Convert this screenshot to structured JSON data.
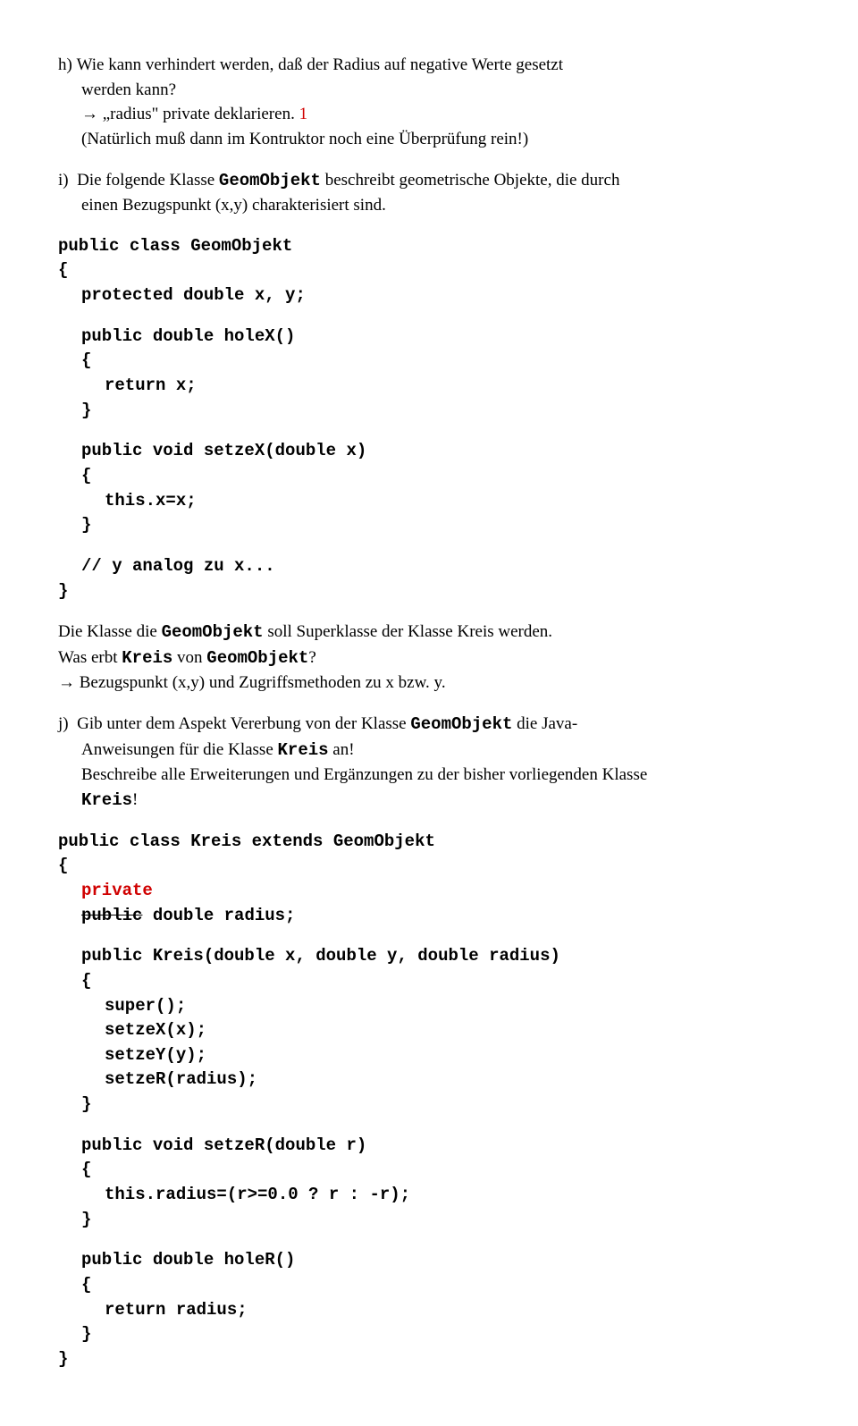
{
  "colors": {
    "red": "#d00000",
    "text": "#000000",
    "bg": "#ffffff"
  },
  "fonts": {
    "body_family": "Times New Roman",
    "mono_family": "Courier New",
    "body_size_pt": 14,
    "mono_bold": true
  },
  "h": {
    "label": "h)",
    "line1a": "Wie kann verhindert werden, daß der Radius auf negative Werte gesetzt",
    "line1b": "werden kann?",
    "arrow": "→",
    "answer": " „radius\" private deklarieren.  ",
    "one": "1",
    "line2": "(Natürlich muß dann im Kontruktor noch eine Überprüfung rein!)"
  },
  "i": {
    "label": "i)",
    "text1a": "Die folgende Klasse ",
    "code1": "GeomObjekt",
    "text1b": " beschreibt geometrische Objekte, die durch",
    "text2": "einen Bezugspunkt (x,y) charakterisiert sind."
  },
  "code1": {
    "l1": "public class GeomObjekt",
    "l2": "{",
    "l3": "protected double x, y;",
    "l4": "public double holeX()",
    "l5": "{",
    "l6": "return x;",
    "l7": "}",
    "l8": "public void setzeX(double x)",
    "l9": "{",
    "l10": "this.x=x;",
    "l11": "}",
    "l12": "// y analog zu x...",
    "l13": "}"
  },
  "mid": {
    "s1a": "Die Klasse die ",
    "s1code": "GeomObjekt",
    "s1b": " soll Superklasse der Klasse Kreis werden.",
    "s2a": "Was erbt ",
    "s2code1": "Kreis",
    "s2b": " von ",
    "s2code2": "GeomObjekt",
    "s2c": "?",
    "arrow": "→",
    "s3": " Bezugspunkt (x,y) und  Zugriffsmethoden zu x bzw. y."
  },
  "j": {
    "label": "j)",
    "l1a": "Gib unter dem Aspekt Vererbung von der Klasse ",
    "l1code": "GeomObjekt",
    "l1b": "  die Java-",
    "l2a": "Anweisungen für die Klasse ",
    "l2code": "Kreis",
    "l2b": " an!",
    "l3": "Beschreibe alle Erweiterungen und Ergänzungen zu der bisher vorliegenden Klasse",
    "l4code": "Kreis",
    "l4b": "!"
  },
  "code2": {
    "l1": "public class Kreis extends GeomObjekt",
    "l2": "{",
    "l3": "private",
    "l4a": "public",
    "l4b": "  double radius;",
    "l5": "public Kreis(double x, double y, double radius)",
    "l6": "{",
    "l7": "super();",
    "l8": "setzeX(x);",
    "l9": "setzeY(y);",
    "l10": "setzeR(radius);",
    "l11": "}",
    "l12": "public void setzeR(double r)",
    "l13": "{",
    "l14": "this.radius=(r>=0.0 ? r : -r);",
    "l15": "}",
    "l16": "public double holeR()",
    "l17": "{",
    "l18": "return radius;",
    "l19": "}",
    "l20": "}"
  }
}
